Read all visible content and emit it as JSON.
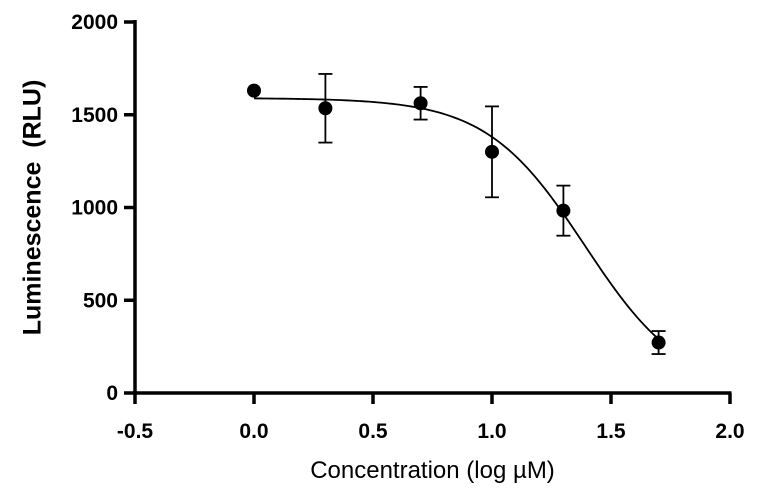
{
  "chart_data": {
    "type": "scatter",
    "title": "",
    "xlabel": "Concentration (log µM)",
    "ylabel": "Luminescence  (RLU)",
    "xlim": [
      -0.5,
      2.0
    ],
    "ylim": [
      0,
      2000
    ],
    "x_ticks": [
      "-0.5",
      "0.0",
      "0.5",
      "1.0",
      "1.5",
      "2.0"
    ],
    "y_ticks": [
      "0",
      "500",
      "1000",
      "1500",
      "2000"
    ],
    "grid": false,
    "legend": "none",
    "marker_color": "#000000",
    "series": [
      {
        "points": [
          {
            "x": 0.0,
            "y": 1630,
            "err": 0
          },
          {
            "x": 0.3,
            "y": 1535,
            "err": 185
          },
          {
            "x": 0.7,
            "y": 1562,
            "err": 88
          },
          {
            "x": 1.0,
            "y": 1300,
            "err": 245
          },
          {
            "x": 1.3,
            "y": 983,
            "err": 135
          },
          {
            "x": 1.7,
            "y": 272,
            "err": 62
          }
        ]
      }
    ],
    "fit_curve": {
      "model": "four-parameter logistic",
      "top": 1590,
      "bottom": 0,
      "log_ic50": 1.39,
      "hill_slope": -2.1,
      "x_range": [
        0.0,
        1.7
      ]
    }
  }
}
